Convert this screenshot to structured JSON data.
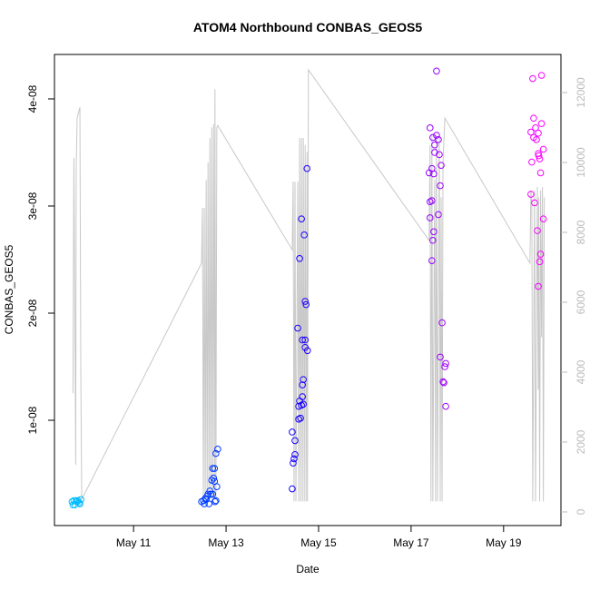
{
  "chart_data": {
    "type": "scatter",
    "title": "ATOM4 Northbound CONBAS_GEOS5",
    "x_label": "Date",
    "y_label": "CONBAS_GEOS5",
    "xlim": [
      9.29,
      20.24
    ],
    "xticks": [
      {
        "value": 11,
        "label": "May 11"
      },
      {
        "value": 13,
        "label": "May 13"
      },
      {
        "value": 15,
        "label": "May 15"
      },
      {
        "value": 17,
        "label": "May 17"
      },
      {
        "value": 19,
        "label": "May 19"
      }
    ],
    "ylim": [
      1.7e-10,
      4.415e-08
    ],
    "yticks": [
      {
        "value": 1e-08,
        "label": "1e-08"
      },
      {
        "value": 2e-08,
        "label": "2e-08"
      },
      {
        "value": 3e-08,
        "label": "3e-08"
      },
      {
        "value": 4e-08,
        "label": "4e-08"
      }
    ],
    "y2lim": [
      -390,
      13091
    ],
    "y2ticks": [
      0,
      2000,
      4000,
      6000,
      8000,
      10000,
      12000
    ],
    "point_colors": [
      "#00bfff",
      "#ff00ff"
    ],
    "x": [
      9.67,
      9.71,
      9.73,
      9.76,
      9.8,
      9.82,
      9.86,
      9.69,
      9.78,
      9.84,
      12.47,
      12.51,
      12.55,
      12.59,
      12.61,
      12.65,
      12.69,
      12.73,
      12.75,
      12.78,
      12.82,
      12.71,
      12.75,
      12.76,
      12.78,
      12.63,
      12.67,
      12.53,
      12.57,
      12.8,
      12.71,
      14.43,
      14.47,
      14.49,
      14.49,
      14.43,
      14.45,
      14.57,
      14.61,
      14.57,
      14.63,
      14.65,
      14.59,
      14.67,
      14.65,
      14.67,
      14.65,
      14.71,
      14.71,
      14.76,
      14.73,
      14.71,
      14.55,
      14.59,
      14.69,
      14.63,
      14.75,
      17.55,
      17.41,
      17.47,
      17.55,
      17.59,
      17.51,
      17.51,
      17.61,
      17.65,
      17.45,
      17.39,
      17.49,
      17.63,
      17.41,
      17.45,
      17.59,
      17.41,
      17.49,
      17.47,
      17.45,
      17.67,
      17.63,
      17.75,
      17.73,
      17.69,
      17.71,
      17.75,
      19.63,
      19.82,
      19.65,
      19.82,
      19.69,
      19.59,
      19.75,
      19.65,
      19.71,
      19.75,
      19.76,
      19.78,
      19.61,
      19.8,
      19.59,
      19.67,
      19.86,
      19.73,
      19.8,
      19.78,
      19.75,
      19.86
    ],
    "values": [
      2.4e-09,
      2.5e-09,
      2.1e-09,
      2.5e-09,
      2.5e-09,
      2.3e-09,
      2.6e-09,
      2.1e-09,
      2.4e-09,
      2.2e-09,
      2.4e-09,
      2.5e-09,
      2.7e-09,
      2.9e-09,
      3.1e-09,
      3.4e-09,
      4.4e-09,
      4.6e-09,
      5.5e-09,
      6.9e-09,
      7.3e-09,
      5.5e-09,
      4.3e-09,
      2.4e-09,
      2.5e-09,
      2.2e-09,
      3.1e-09,
      2.2e-09,
      2.6e-09,
      3.8e-09,
      3.1e-09,
      3.6e-09,
      6.4e-09,
      6.8e-09,
      8.1e-09,
      8.9e-09,
      6e-09,
      1.01e-08,
      1.02e-08,
      1.13e-08,
      1.14e-08,
      1.22e-08,
      1.18e-08,
      1.15e-08,
      1.33e-08,
      1.38e-08,
      1.75e-08,
      1.75e-08,
      1.68e-08,
      1.65e-08,
      2.08e-08,
      2.11e-08,
      1.86e-08,
      2.51e-08,
      2.73e-08,
      2.88e-08,
      3.35e-08,
      4.26e-08,
      3.73e-08,
      3.64e-08,
      3.66e-08,
      3.62e-08,
      3.57e-08,
      3.5e-08,
      3.48e-08,
      3.38e-08,
      3.35e-08,
      3.31e-08,
      3.3e-08,
      3.19e-08,
      3.04e-08,
      3.05e-08,
      2.92e-08,
      2.89e-08,
      2.76e-08,
      2.68e-08,
      2.49e-08,
      1.91e-08,
      1.59e-08,
      1.53e-08,
      1.5e-08,
      1.36e-08,
      1.35e-08,
      1.13e-08,
      4.19e-08,
      4.22e-08,
      3.82e-08,
      3.77e-08,
      3.73e-08,
      3.69e-08,
      3.68e-08,
      3.64e-08,
      3.62e-08,
      3.49e-08,
      3.47e-08,
      3.44e-08,
      3.41e-08,
      3.31e-08,
      3.11e-08,
      3.03e-08,
      2.88e-08,
      2.77e-08,
      2.55e-08,
      2.48e-08,
      2.25e-08,
      3.53e-08
    ],
    "line": {
      "axis": "y2",
      "color": "#c8c8c8",
      "x": [
        9.69,
        9.71,
        9.75,
        9.76,
        9.78,
        9.84,
        9.86,
        9.88,
        12.47,
        12.49,
        12.51,
        12.53,
        12.55,
        12.57,
        12.59,
        12.61,
        12.63,
        12.65,
        12.67,
        12.69,
        12.71,
        12.73,
        12.75,
        12.76,
        12.78,
        12.8,
        12.82,
        14.43,
        14.45,
        14.47,
        14.49,
        14.51,
        14.55,
        14.57,
        14.59,
        14.61,
        14.63,
        14.65,
        14.67,
        14.69,
        14.71,
        14.73,
        14.75,
        14.76,
        14.78,
        17.39,
        17.41,
        17.43,
        17.45,
        17.47,
        17.51,
        17.53,
        17.55,
        17.57,
        17.61,
        17.63,
        17.65,
        17.67,
        17.69,
        17.73,
        19.57,
        19.59,
        19.61,
        19.63,
        19.67,
        19.69,
        19.73,
        19.75,
        19.76,
        19.78,
        19.8,
        19.82,
        19.84,
        19.86,
        19.88
      ],
      "values": [
        3400,
        10130,
        1350,
        9800,
        11270,
        11580,
        3900,
        360,
        7120,
        8700,
        360,
        8700,
        360,
        9500,
        360,
        10000,
        360,
        10700,
        360,
        11000,
        360,
        11100,
        360,
        12100,
        360,
        11000,
        11060,
        7500,
        9450,
        300,
        9450,
        300,
        9450,
        300,
        10700,
        300,
        10700,
        300,
        10700,
        300,
        10500,
        300,
        10300,
        300,
        12650,
        7770,
        10500,
        300,
        10800,
        300,
        9500,
        300,
        10800,
        300,
        10800,
        300,
        9000,
        300,
        10000,
        11270,
        7120,
        9200,
        8800,
        300,
        9200,
        300,
        9300,
        3500,
        9000,
        300,
        9200,
        5000,
        9300,
        300,
        9000
      ]
    }
  }
}
